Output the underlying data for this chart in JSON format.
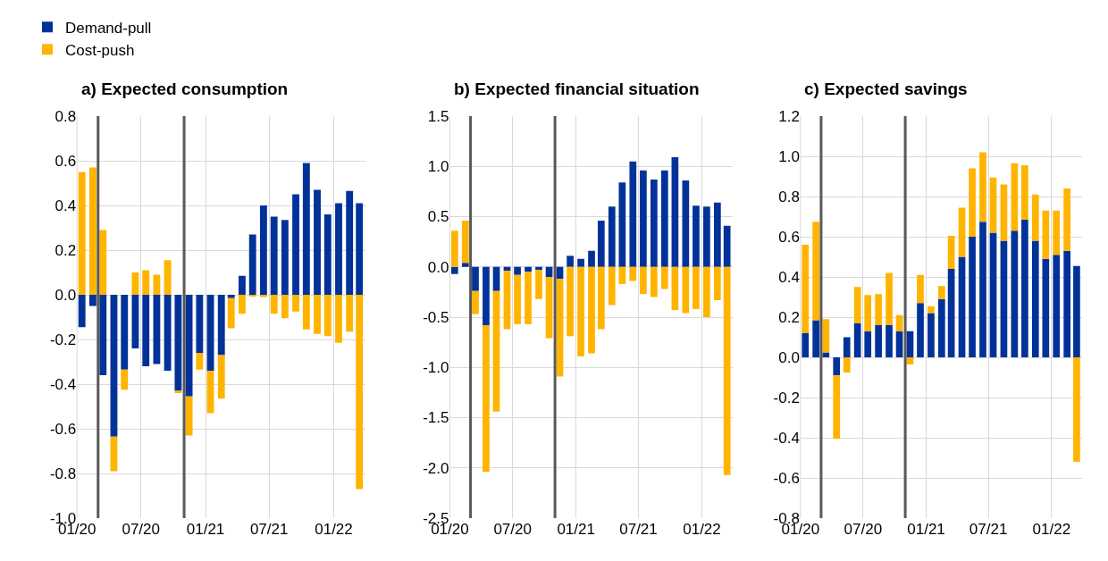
{
  "chart_data": [
    {
      "type": "bar",
      "title": "a) Expected consumption",
      "stacked": true,
      "grid": true,
      "legend": "top left",
      "x": [
        "2020-01-15",
        "2020-02-15",
        "2020-03-15",
        "2020-04-15",
        "2020-05-15",
        "2020-06-15",
        "2020-07-15",
        "2020-08-15",
        "2020-09-15",
        "2020-10-15",
        "2020-11-15",
        "2020-12-15",
        "2021-01-15",
        "2021-02-15",
        "2021-03-15",
        "2021-04-15",
        "2021-05-15",
        "2021-06-15",
        "2021-07-15",
        "2021-08-15",
        "2021-09-15",
        "2021-10-15",
        "2021-11-15",
        "2021-12-15",
        "2022-01-15",
        "2022-02-15",
        "2022-03-15"
      ],
      "xlim": [
        "2020-01",
        "2022-04"
      ],
      "xticks": [
        {
          "value": "2020-01",
          "label": "01/20"
        },
        {
          "value": "2020-07",
          "label": "07/20"
        },
        {
          "value": "2021-01",
          "label": "01/21"
        },
        {
          "value": "2021-07",
          "label": "07/21"
        },
        {
          "value": "2022-01",
          "label": "01/22"
        }
      ],
      "ylim": [
        -1.0,
        0.8
      ],
      "yticks": [
        {
          "value": -1.0,
          "label": "-1.0"
        },
        {
          "value": -0.8,
          "label": "-0.8"
        },
        {
          "value": -0.6,
          "label": "-0.6"
        },
        {
          "value": -0.4,
          "label": "-0.4"
        },
        {
          "value": -0.2,
          "label": "-0.2"
        },
        {
          "value": 0,
          "label": "0.0"
        },
        {
          "value": 0.2,
          "label": "0.2"
        },
        {
          "value": 0.4,
          "label": "0.4"
        },
        {
          "value": 0.6,
          "label": "0.6"
        },
        {
          "value": 0.8,
          "label": "0.8"
        }
      ],
      "ref_lines": [
        {
          "axis": "x",
          "value": "2020-03",
          "color": "#595959"
        },
        {
          "axis": "x",
          "value": "2020-11",
          "color": "#595959"
        }
      ],
      "series": [
        {
          "name": "Demand-pull",
          "color": "#003299",
          "values": [
            -0.145,
            -0.05,
            -0.36,
            -0.635,
            -0.335,
            -0.24,
            -0.32,
            -0.31,
            -0.34,
            -0.43,
            -0.455,
            -0.26,
            -0.34,
            -0.27,
            -0.015,
            0.085,
            0.27,
            0.4,
            0.35,
            0.335,
            0.45,
            0.59,
            0.47,
            0.36,
            0.41,
            0.465,
            0.41
          ]
        },
        {
          "name": "Cost-push",
          "color": "#ffb400",
          "values": [
            0.55,
            0.57,
            0.29,
            -0.155,
            -0.09,
            0.1,
            0.11,
            0.09,
            0.155,
            -0.01,
            -0.175,
            -0.075,
            -0.19,
            -0.195,
            -0.135,
            -0.085,
            -0.005,
            -0.01,
            -0.085,
            -0.105,
            -0.075,
            -0.155,
            -0.175,
            -0.185,
            -0.215,
            -0.165,
            -0.87
          ]
        }
      ]
    },
    {
      "type": "bar",
      "title": "b) Expected financial situation",
      "stacked": true,
      "grid": true,
      "x": [
        "2020-01-15",
        "2020-02-15",
        "2020-03-15",
        "2020-04-15",
        "2020-05-15",
        "2020-06-15",
        "2020-07-15",
        "2020-08-15",
        "2020-09-15",
        "2020-10-15",
        "2020-11-15",
        "2020-12-15",
        "2021-01-15",
        "2021-02-15",
        "2021-03-15",
        "2021-04-15",
        "2021-05-15",
        "2021-06-15",
        "2021-07-15",
        "2021-08-15",
        "2021-09-15",
        "2021-10-15",
        "2021-11-15",
        "2021-12-15",
        "2022-01-15",
        "2022-02-15",
        "2022-03-15"
      ],
      "xlim": [
        "2020-01",
        "2022-04"
      ],
      "xticks": [
        {
          "value": "2020-01",
          "label": "01/20"
        },
        {
          "value": "2020-07",
          "label": "07/20"
        },
        {
          "value": "2021-01",
          "label": "01/21"
        },
        {
          "value": "2021-07",
          "label": "07/21"
        },
        {
          "value": "2022-01",
          "label": "01/22"
        }
      ],
      "ylim": [
        -2.5,
        1.5
      ],
      "yticks": [
        {
          "value": -2.5,
          "label": "-2.5"
        },
        {
          "value": -2,
          "label": "-2.0"
        },
        {
          "value": -1.5,
          "label": "-1.5"
        },
        {
          "value": -1,
          "label": "-1.0"
        },
        {
          "value": -0.5,
          "label": "-0.5"
        },
        {
          "value": 0,
          "label": "0.0"
        },
        {
          "value": 0.5,
          "label": "0.5"
        },
        {
          "value": 1,
          "label": "1.0"
        },
        {
          "value": 1.5,
          "label": "1.5"
        }
      ],
      "ref_lines": [
        {
          "axis": "x",
          "value": "2020-03",
          "color": "#595959"
        },
        {
          "axis": "x",
          "value": "2020-11",
          "color": "#595959"
        }
      ],
      "series": [
        {
          "color": "#003299",
          "values": [
            -0.07,
            0.04,
            -0.24,
            -0.58,
            -0.24,
            -0.04,
            -0.08,
            -0.05,
            -0.03,
            -0.1,
            -0.12,
            0.11,
            0.08,
            0.16,
            0.46,
            0.6,
            0.84,
            1.05,
            0.96,
            0.87,
            0.96,
            1.09,
            0.86,
            0.61,
            0.6,
            0.64,
            0.41
          ]
        },
        {
          "color": "#ffb400",
          "values": [
            0.36,
            0.42,
            -0.23,
            -1.46,
            -1.2,
            -0.58,
            -0.49,
            -0.52,
            -0.29,
            -0.61,
            -0.97,
            -0.69,
            -0.89,
            -0.86,
            -0.62,
            -0.38,
            -0.17,
            -0.14,
            -0.27,
            -0.3,
            -0.22,
            -0.43,
            -0.46,
            -0.42,
            -0.5,
            -0.33,
            -2.07
          ]
        }
      ]
    },
    {
      "type": "bar",
      "title": "c) Expected savings",
      "stacked": true,
      "grid": true,
      "x": [
        "2020-01-15",
        "2020-02-15",
        "2020-03-15",
        "2020-04-15",
        "2020-05-15",
        "2020-06-15",
        "2020-07-15",
        "2020-08-15",
        "2020-09-15",
        "2020-10-15",
        "2020-11-15",
        "2020-12-15",
        "2021-01-15",
        "2021-02-15",
        "2021-03-15",
        "2021-04-15",
        "2021-05-15",
        "2021-06-15",
        "2021-07-15",
        "2021-08-15",
        "2021-09-15",
        "2021-10-15",
        "2021-11-15",
        "2021-12-15",
        "2022-01-15",
        "2022-02-15",
        "2022-03-15"
      ],
      "xlim": [
        "2020-01",
        "2022-04"
      ],
      "xticks": [
        {
          "value": "2020-01",
          "label": "01/20"
        },
        {
          "value": "2020-07",
          "label": "07/20"
        },
        {
          "value": "2021-01",
          "label": "01/21"
        },
        {
          "value": "2021-07",
          "label": "07/21"
        },
        {
          "value": "2022-01",
          "label": "01/22"
        }
      ],
      "ylim": [
        -0.8,
        1.2
      ],
      "yticks": [
        {
          "value": -0.8,
          "label": "-0.8"
        },
        {
          "value": -0.6,
          "label": "-0.6"
        },
        {
          "value": -0.4,
          "label": "-0.4"
        },
        {
          "value": -0.2,
          "label": "-0.2"
        },
        {
          "value": 0,
          "label": "0.0"
        },
        {
          "value": 0.2,
          "label": "0.2"
        },
        {
          "value": 0.4,
          "label": "0.4"
        },
        {
          "value": 0.6,
          "label": "0.6"
        },
        {
          "value": 0.8,
          "label": "0.8"
        },
        {
          "value": 1,
          "label": "1.0"
        },
        {
          "value": 1.2,
          "label": "1.2"
        }
      ],
      "ref_lines": [
        {
          "axis": "x",
          "value": "2020-03",
          "color": "#595959"
        },
        {
          "axis": "x",
          "value": "2020-11",
          "color": "#595959"
        }
      ],
      "series": [
        {
          "color": "#003299",
          "values": [
            0.12,
            0.185,
            0.025,
            -0.09,
            0.1,
            0.17,
            0.13,
            0.16,
            0.16,
            0.13,
            0.13,
            0.27,
            0.22,
            0.29,
            0.44,
            0.5,
            0.6,
            0.675,
            0.62,
            0.58,
            0.63,
            0.685,
            0.58,
            0.49,
            0.51,
            0.53,
            0.455
          ]
        },
        {
          "color": "#ffb400",
          "values": [
            0.44,
            0.49,
            0.165,
            -0.315,
            -0.075,
            0.18,
            0.18,
            0.155,
            0.26,
            0.08,
            -0.035,
            0.14,
            0.035,
            0.065,
            0.165,
            0.245,
            0.34,
            0.345,
            0.275,
            0.28,
            0.335,
            0.27,
            0.23,
            0.24,
            0.22,
            0.31,
            -0.52
          ]
        }
      ]
    }
  ]
}
